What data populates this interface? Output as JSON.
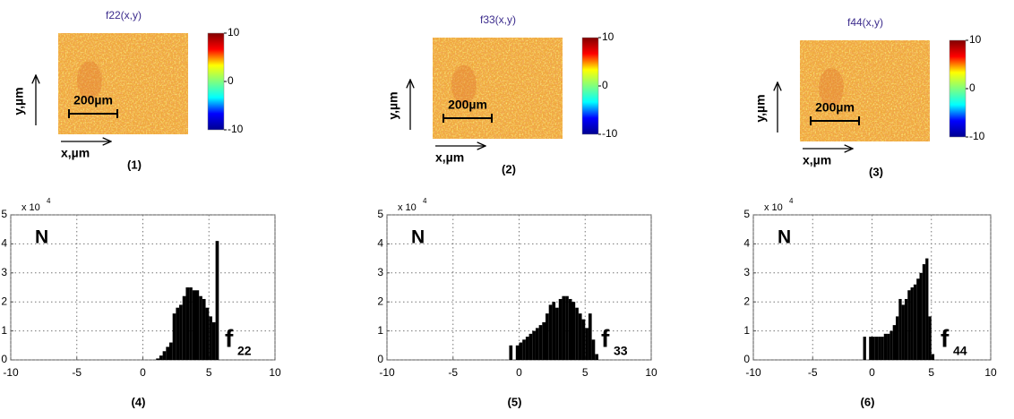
{
  "chart_data": [
    {
      "type": "heatmap",
      "title": "f22(x,y)",
      "xlabel": "x,µm",
      "ylabel": "y,µm",
      "scale_bar": "200µm",
      "panel": "(1)",
      "colormap": "jet",
      "colorbar_lim": [
        -10,
        10
      ],
      "colorbar_ticks": [
        -10,
        0,
        10
      ]
    },
    {
      "type": "heatmap",
      "title": "f33(x,y)",
      "xlabel": "x,µm",
      "ylabel": "y,µm",
      "scale_bar": "200µm",
      "panel": "(2)",
      "colormap": "jet",
      "colorbar_lim": [
        -10,
        10
      ],
      "colorbar_ticks": [
        -10,
        0,
        10
      ]
    },
    {
      "type": "heatmap",
      "title": "f44(x,y)",
      "xlabel": "x,µm",
      "ylabel": "y,µm",
      "scale_bar": "200µm",
      "panel": "(3)",
      "colormap": "jet",
      "colorbar_lim": [
        -10,
        10
      ],
      "colorbar_ticks": [
        -10,
        0,
        10
      ]
    },
    {
      "type": "histogram",
      "label": "N",
      "annotation": "f",
      "annotation_subscript": "22",
      "panel": "(4)",
      "y_multiplier": "x 10",
      "y_multiplier_exponent": "4",
      "color": "#000000",
      "grid": true,
      "xlim": [
        -10,
        10
      ],
      "xticks": [
        -10,
        -5,
        0,
        5,
        10
      ],
      "ylim": [
        0,
        5
      ],
      "yticks": [
        0,
        1,
        2,
        3,
        4,
        5
      ],
      "bins": [
        1.0,
        1.25,
        1.5,
        1.75,
        2.0,
        2.25,
        2.5,
        2.75,
        3.0,
        3.25,
        3.5,
        3.75,
        4.0,
        4.25,
        4.5,
        4.75,
        5.0,
        5.25,
        5.5,
        5.75
      ],
      "values": [
        0.05,
        0.15,
        0.3,
        0.45,
        0.6,
        1.6,
        1.8,
        1.9,
        2.2,
        2.5,
        2.5,
        2.4,
        2.4,
        2.2,
        2.1,
        1.8,
        1.5,
        1.3,
        4.1
      ]
    },
    {
      "type": "histogram",
      "label": "N",
      "annotation": "f",
      "annotation_subscript": "33",
      "panel": "(5)",
      "y_multiplier": "x 10",
      "y_multiplier_exponent": "4",
      "color": "#000000",
      "grid": true,
      "xlim": [
        -10,
        10
      ],
      "xticks": [
        -10,
        -5,
        0,
        5,
        10
      ],
      "ylim": [
        0,
        5
      ],
      "yticks": [
        0,
        1,
        2,
        3,
        4,
        5
      ],
      "bins": [
        -0.75,
        -0.5,
        -0.25,
        0.0,
        0.25,
        0.5,
        0.75,
        1.0,
        1.25,
        1.5,
        1.75,
        2.0,
        2.25,
        2.5,
        2.75,
        3.0,
        3.25,
        3.5,
        3.75,
        4.0,
        4.25,
        4.5,
        4.75,
        5.0,
        5.25,
        5.5,
        5.75,
        6.0
      ],
      "values": [
        0.5,
        0,
        0.5,
        0.6,
        0.7,
        0.8,
        0.9,
        1.0,
        1.1,
        1.2,
        1.3,
        1.6,
        1.9,
        2.0,
        1.8,
        2.1,
        2.2,
        2.2,
        2.1,
        2.0,
        1.8,
        1.6,
        1.4,
        1.1,
        1.6,
        0.7,
        0.2
      ]
    },
    {
      "type": "histogram",
      "label": "N",
      "annotation": "f",
      "annotation_subscript": "44",
      "panel": "(6)",
      "y_multiplier": "x 10",
      "y_multiplier_exponent": "4",
      "color": "#000000",
      "grid": true,
      "xlim": [
        -10,
        10
      ],
      "xticks": [
        -10,
        -5,
        0,
        5,
        10
      ],
      "ylim": [
        0,
        5
      ],
      "yticks": [
        0,
        1,
        2,
        3,
        4,
        5
      ],
      "bins": [
        -0.75,
        -0.5,
        -0.25,
        0.0,
        0.25,
        0.5,
        0.75,
        1.0,
        1.25,
        1.5,
        1.75,
        2.0,
        2.25,
        2.5,
        2.75,
        3.0,
        3.25,
        3.5,
        3.75,
        4.0,
        4.25,
        4.5,
        4.75,
        5.0,
        5.25
      ],
      "values": [
        0.8,
        0,
        0.8,
        0.8,
        0.8,
        0.8,
        0.8,
        0.9,
        0.9,
        1.0,
        1.2,
        1.5,
        2.1,
        1.9,
        2.1,
        2.4,
        2.5,
        2.6,
        2.8,
        3.0,
        3.3,
        3.5,
        1.5,
        0.2
      ]
    }
  ]
}
